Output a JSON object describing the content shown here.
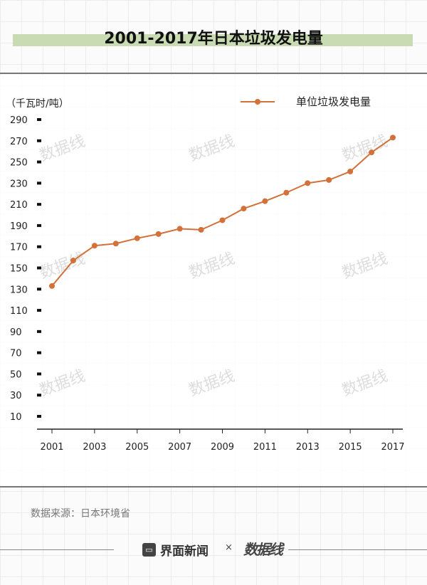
{
  "title": "2001-2017年日本垃圾发电量",
  "source": "数据来源：日本环境省",
  "footer": {
    "brand": "界面新闻",
    "separator": "×",
    "partner_logo": "数据线"
  },
  "watermark": "数据线",
  "colors": {
    "series": "#d2713a",
    "highlight": "#c9dbb2"
  },
  "chart_data": {
    "type": "line",
    "title": "2001-2017年日本垃圾发电量",
    "ylabel": "（千瓦时/吨）",
    "xlabel": "",
    "x": [
      2001,
      2002,
      2003,
      2004,
      2005,
      2006,
      2007,
      2008,
      2009,
      2010,
      2011,
      2012,
      2013,
      2014,
      2015,
      2016,
      2017
    ],
    "xticks": [
      "2001",
      "2003",
      "2005",
      "2007",
      "2009",
      "2011",
      "2013",
      "2015",
      "2017"
    ],
    "yticks": [
      "10",
      "30",
      "50",
      "70",
      "90",
      "110",
      "130",
      "150",
      "170",
      "190",
      "210",
      "230",
      "250",
      "270",
      "290"
    ],
    "ylim": [
      10,
      290
    ],
    "grid": false,
    "legend": "top-right",
    "series": [
      {
        "name": "单位垃圾发电量",
        "values": [
          133,
          157,
          171,
          173,
          178,
          182,
          187,
          186,
          195,
          206,
          213,
          221,
          230,
          233,
          241,
          259,
          273
        ]
      }
    ]
  }
}
